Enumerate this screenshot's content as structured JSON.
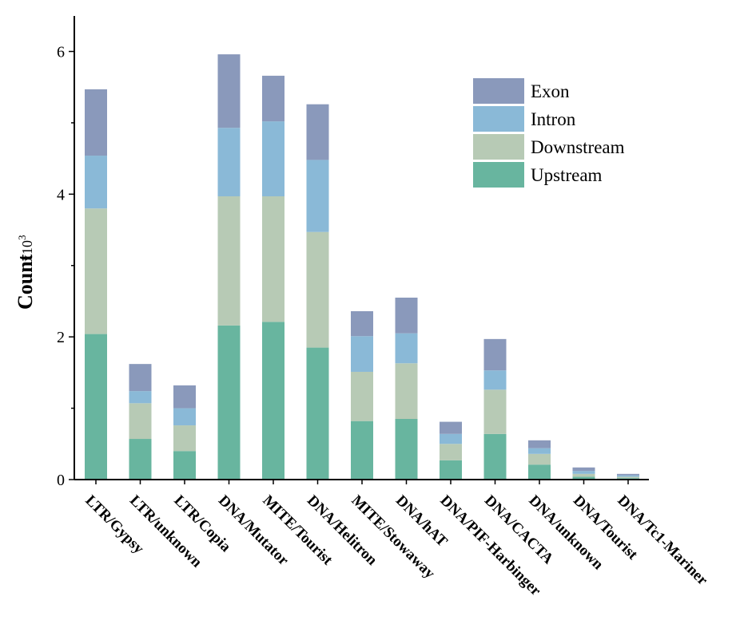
{
  "chart_data": {
    "type": "bar",
    "stacked": true,
    "title": "",
    "xlabel": "",
    "ylabel": "Count",
    "ylabel_unit": "x10",
    "ylabel_unit_exp": "3",
    "ylim": [
      0,
      6.5
    ],
    "yticks": [
      0,
      2,
      4,
      6
    ],
    "legend_position": "top-right",
    "categories": [
      "LTR/Gypsy",
      "LTR/unknown",
      "LTR/Copia",
      "DNA/Mutator",
      "MITE/Tourist",
      "DNA/Helitron",
      "MITE/Stowaway",
      "DNA/hAT",
      "DNA/PIF-Harbinger",
      "DNA/CACTA",
      "DNA/unknown",
      "DNA/Tourist",
      "DNA/Tc1-Mariner"
    ],
    "series": [
      {
        "name": "Upstream",
        "color": "#68b59f",
        "values": [
          2.04,
          0.57,
          0.4,
          2.16,
          2.21,
          1.85,
          0.82,
          0.85,
          0.27,
          0.64,
          0.21,
          0.04,
          0.02
        ]
      },
      {
        "name": "Downstream",
        "color": "#b7cab5",
        "values": [
          1.76,
          0.5,
          0.36,
          1.81,
          1.76,
          1.62,
          0.69,
          0.78,
          0.23,
          0.62,
          0.15,
          0.04,
          0.02
        ]
      },
      {
        "name": "Intron",
        "color": "#8ab9d7",
        "values": [
          0.74,
          0.17,
          0.24,
          0.96,
          1.05,
          1.01,
          0.5,
          0.42,
          0.14,
          0.27,
          0.08,
          0.04,
          0.02
        ]
      },
      {
        "name": "Exon",
        "color": "#8a99bb",
        "values": [
          0.93,
          0.38,
          0.32,
          1.03,
          0.64,
          0.78,
          0.35,
          0.5,
          0.17,
          0.44,
          0.11,
          0.05,
          0.02
        ]
      }
    ],
    "legend_order": [
      "Exon",
      "Intron",
      "Downstream",
      "Upstream"
    ]
  }
}
